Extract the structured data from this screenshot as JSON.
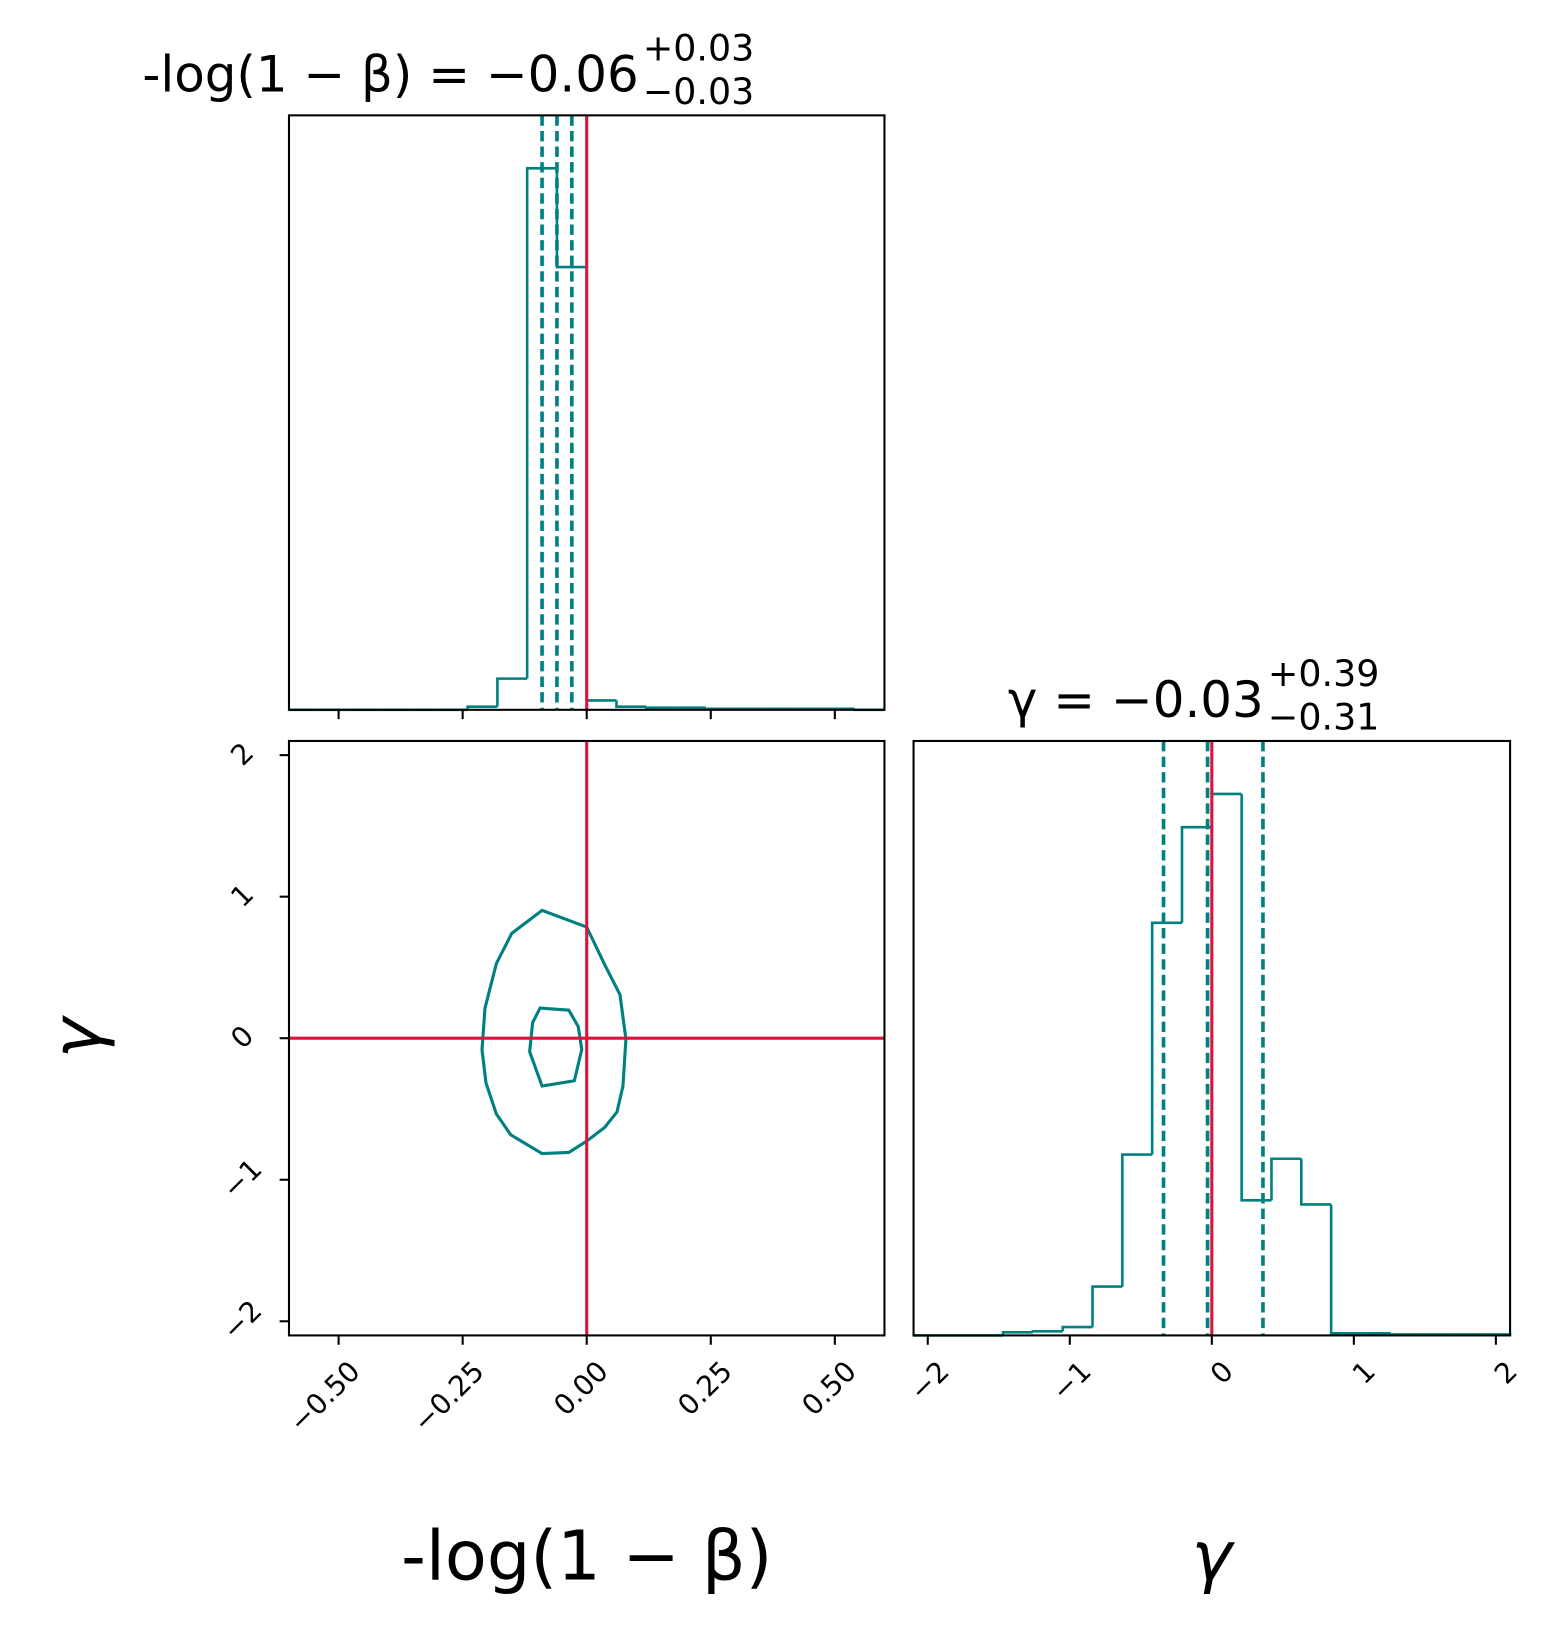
{
  "chart_data": [
    {
      "type": "histogram",
      "title": {
        "text": "-log(1 − β) = −0.06",
        "upper": "+0.03",
        "lower": "−0.03"
      },
      "color": "#008080",
      "truth_color": "#dc143c",
      "bins": [
        -0.6,
        -0.54,
        -0.48,
        -0.42,
        -0.36,
        -0.3,
        -0.24,
        -0.18,
        -0.12,
        -0.06,
        0,
        0.06,
        0.12,
        0.18,
        0.24,
        0.3,
        0.36,
        0.42,
        0.48,
        0.54,
        0.6
      ],
      "values": [
        0,
        0,
        0,
        0,
        0,
        0,
        3,
        30,
        521,
        426,
        9,
        3,
        2,
        2,
        1,
        1,
        1,
        1,
        1,
        0
      ],
      "xlim": [
        -0.6,
        0.6
      ],
      "ylim": [
        0,
        572
      ],
      "xticks": [
        -0.5,
        -0.25,
        0,
        0.25,
        0.5
      ],
      "quantiles": [
        -0.09,
        -0.06,
        -0.03
      ],
      "truth": 0
    },
    {
      "type": "contour",
      "xlabel": "-log(1 − β)",
      "ylabel": "γ",
      "truth_color": "#dc143c",
      "xlim": [
        -0.6,
        0.6
      ],
      "ylim": [
        -2.1,
        2.1
      ],
      "xticks": [
        {
          "value": -0.5,
          "label": "−0.50"
        },
        {
          "value": -0.25,
          "label": "−0.25"
        },
        {
          "value": 0,
          "label": "0.00"
        },
        {
          "value": 0.25,
          "label": "0.25"
        },
        {
          "value": 0.5,
          "label": "0.50"
        }
      ],
      "yticks": [
        {
          "value": -2,
          "label": "−2"
        },
        {
          "value": -1,
          "label": "−1"
        },
        0,
        1,
        2
      ],
      "series": [
        {
          "color": "#008080",
          "x": [
            0,
            -0.09,
            -0.151,
            -0.182,
            -0.205,
            -0.211,
            -0.203,
            -0.182,
            -0.153,
            -0.09,
            -0.036,
            0,
            0.036,
            0.061,
            0.073,
            0.079,
            0.067,
            0.036
          ],
          "y": [
            0.785,
            0.903,
            0.741,
            0.528,
            0.213,
            -0.081,
            -0.316,
            -0.536,
            -0.683,
            -0.815,
            -0.807,
            -0.727,
            -0.631,
            -0.521,
            -0.338,
            -0.007,
            0.308,
            0.521
          ]
        },
        {
          "color": "#008080",
          "x": [
            -0.094,
            -0.036,
            -0.017,
            -0.01,
            -0.025,
            -0.09,
            -0.115,
            -0.109
          ],
          "y": [
            0.213,
            0.198,
            0.081,
            -0.081,
            -0.301,
            -0.338,
            -0.095,
            0.11
          ]
        }
      ],
      "truth_x": 0,
      "truth_y": 0
    },
    {
      "type": "histogram",
      "title": {
        "text": "γ = −0.03",
        "upper": "+0.39",
        "lower": "−0.31"
      },
      "xlabel": "γ",
      "color": "#008080",
      "truth_color": "#dc143c",
      "bins": [
        -2.1,
        -1.89,
        -1.68,
        -1.47,
        -1.26,
        -1.05,
        -0.84,
        -0.63,
        -0.42,
        -0.21,
        0,
        0.21,
        0.42,
        0.63,
        0.84,
        1.05,
        1.26,
        1.47,
        1.68,
        1.89,
        2.1
      ],
      "values": [
        0,
        0,
        0,
        3,
        4,
        8,
        47,
        174,
        397,
        489,
        521,
        130,
        170,
        126,
        2,
        2,
        1,
        1,
        1,
        1
      ],
      "xlim": [
        -2.1,
        2.1
      ],
      "ylim": [
        0,
        572
      ],
      "xticks": [
        {
          "value": -2,
          "label": "−2"
        },
        {
          "value": -1,
          "label": "−1"
        },
        0,
        1,
        2
      ],
      "quantiles": [
        -0.34,
        -0.03,
        0.36
      ],
      "truth": 0
    }
  ]
}
